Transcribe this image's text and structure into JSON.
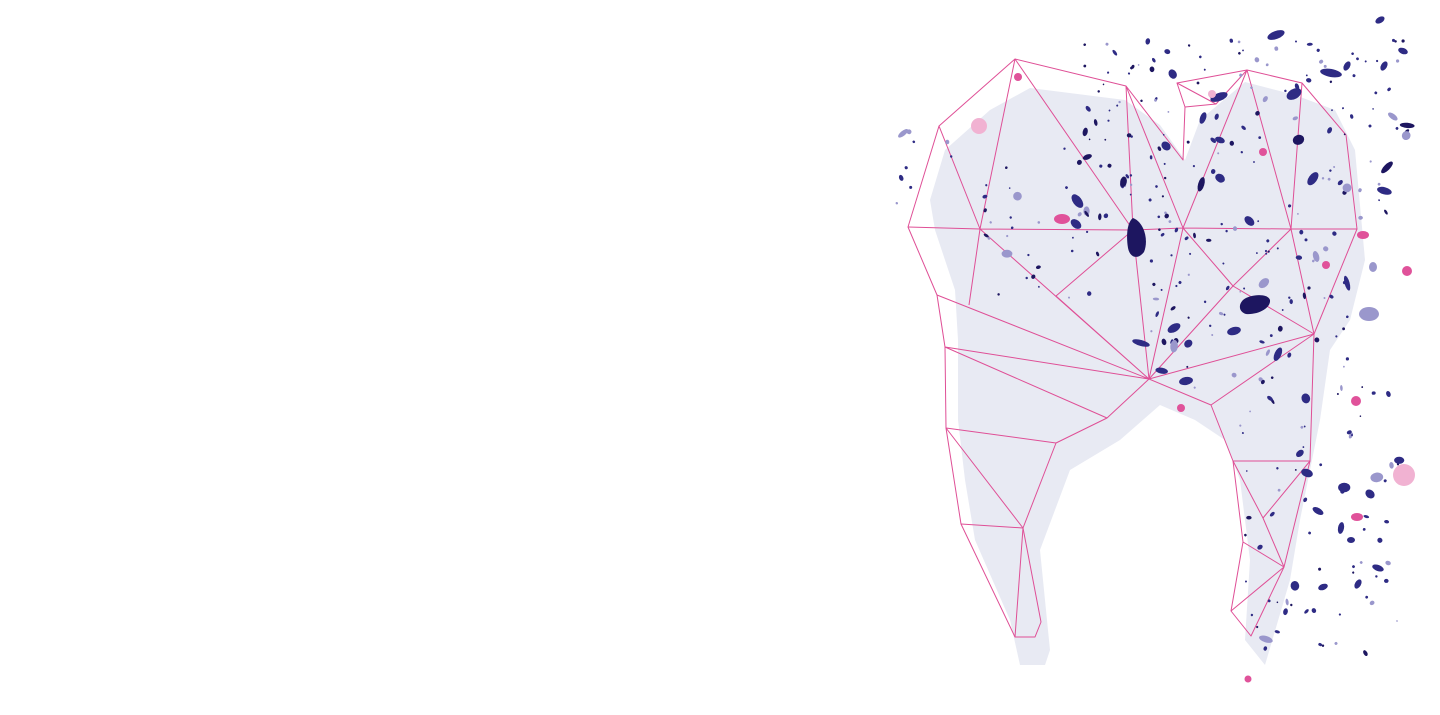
{
  "illustration": {
    "subject": "tooth-icon",
    "colors": {
      "background": "#ffffff",
      "tooth_fill": "#e8eaf3",
      "outline": "#df4f96",
      "particle_dark": "#1d1660",
      "particle_mid": "#2e2b84",
      "particle_light": "#9a97cc",
      "accent_pink": "#e0529a",
      "accent_pink_light": "#f1b2d2"
    }
  }
}
